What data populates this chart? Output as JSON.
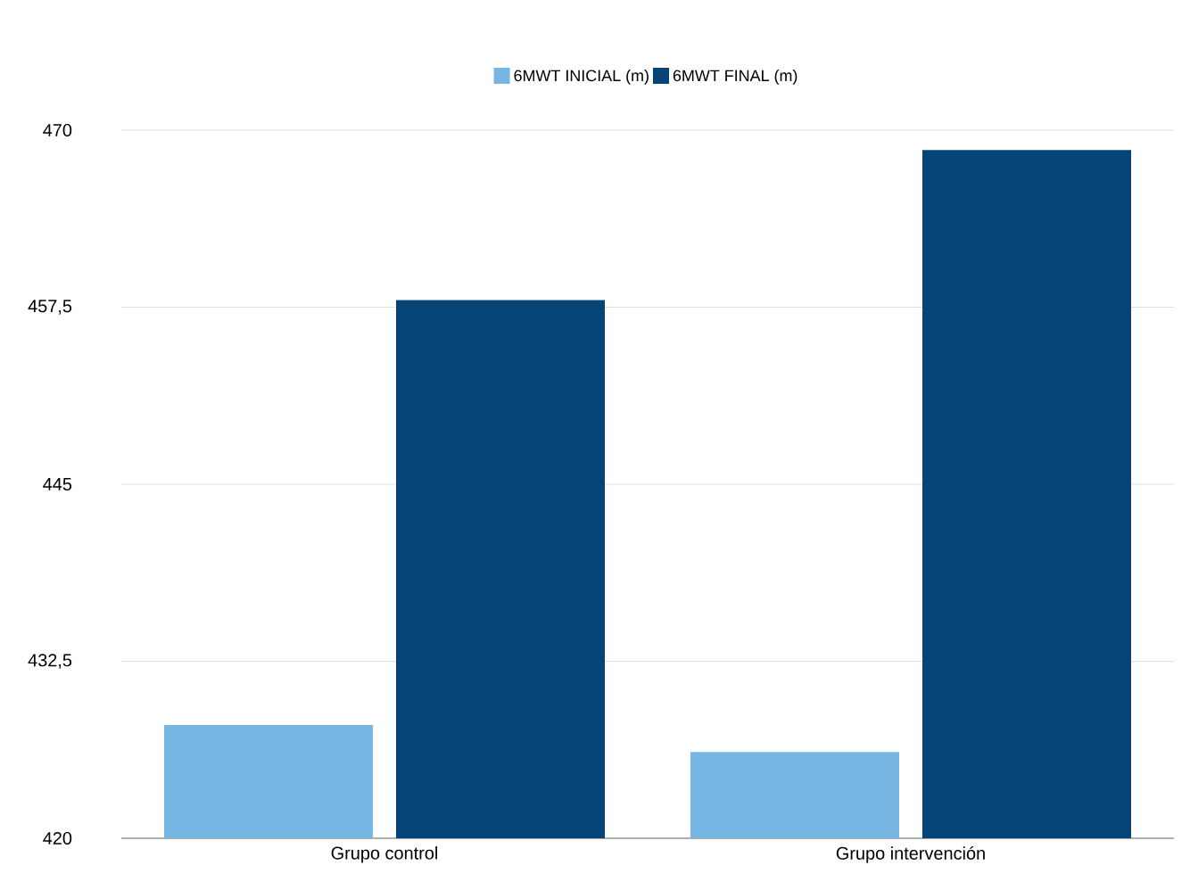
{
  "chart_data": {
    "type": "bar",
    "categories": [
      "Grupo control",
      "Grupo intervención"
    ],
    "series": [
      {
        "name": "6MWT INICIAL (m)",
        "color": "#77b5e3",
        "values": [
          428.0,
          426.1
        ]
      },
      {
        "name": "6MWT FINAL (m)",
        "color": "#054475",
        "values": [
          458.0,
          468.6
        ]
      }
    ],
    "ylim": [
      420,
      470
    ],
    "yticks": [
      420,
      {
        "value": 432.5,
        "label": "432,5"
      },
      445,
      {
        "value": 457.5,
        "label": "457,5"
      },
      470
    ],
    "grid": "y",
    "legend": "top"
  }
}
